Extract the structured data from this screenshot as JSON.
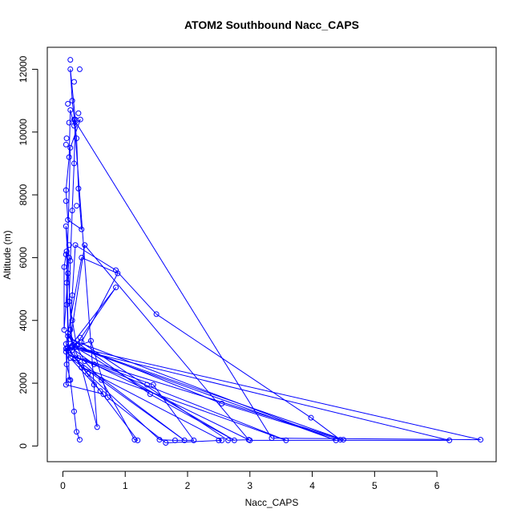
{
  "chart_data": {
    "type": "scatter",
    "title": "ATOM2 Southbound Nacc_CAPS",
    "xlabel": "Nacc_CAPS",
    "ylabel": "Altitude (m)",
    "xlim": [
      -0.25,
      6.95
    ],
    "ylim": [
      -500,
      12700
    ],
    "xticks": [
      0,
      1,
      2,
      3,
      4,
      5,
      6
    ],
    "yticks": [
      0,
      2000,
      4000,
      6000,
      8000,
      10000,
      12000
    ],
    "grid": false,
    "series": [
      {
        "color": "#0000ff",
        "marker": "open-circle",
        "line": true,
        "points": [
          [
            0.27,
            200
          ],
          [
            0.22,
            450
          ],
          [
            0.18,
            1100
          ],
          [
            0.12,
            2100
          ],
          [
            0.06,
            2600
          ],
          [
            0.05,
            3100
          ],
          [
            0.18,
            3300
          ],
          [
            0.35,
            2700
          ],
          [
            0.62,
            2100
          ],
          [
            1.15,
            200
          ],
          [
            1.2,
            180
          ],
          [
            0.6,
            1750
          ],
          [
            0.2,
            2800
          ],
          [
            0.12,
            3700
          ],
          [
            0.15,
            4800
          ],
          [
            0.2,
            6400
          ],
          [
            0.85,
            5600
          ],
          [
            1.5,
            4200
          ],
          [
            3.98,
            900
          ],
          [
            4.45,
            200
          ],
          [
            2.55,
            1350
          ],
          [
            0.22,
            3200
          ],
          [
            0.1,
            4600
          ],
          [
            0.12,
            5900
          ],
          [
            0.15,
            7500
          ],
          [
            0.18,
            9000
          ],
          [
            0.2,
            10400
          ],
          [
            0.12,
            12000
          ],
          [
            0.15,
            11000
          ],
          [
            0.22,
            9800
          ],
          [
            0.25,
            8200
          ],
          [
            0.3,
            6900
          ],
          [
            0.08,
            7200
          ],
          [
            0.05,
            8150
          ],
          [
            0.1,
            9200
          ],
          [
            0.12,
            10700
          ],
          [
            0.18,
            10200
          ],
          [
            0.28,
            10400
          ],
          [
            0.12,
            9500
          ],
          [
            0.06,
            5200
          ],
          [
            0.08,
            3600
          ],
          [
            0.25,
            2800
          ],
          [
            1.45,
            1950
          ],
          [
            2.1,
            180
          ],
          [
            1.8,
            180
          ],
          [
            1.55,
            200
          ],
          [
            0.4,
            2300
          ],
          [
            0.1,
            3050
          ],
          [
            0.45,
            3350
          ],
          [
            0.72,
            1550
          ],
          [
            1.65,
            100
          ],
          [
            2.55,
            180
          ],
          [
            0.3,
            2500
          ],
          [
            0.08,
            3150
          ],
          [
            6.2,
            180
          ],
          [
            3.0,
            180
          ],
          [
            0.5,
            2600
          ],
          [
            0.05,
            3250
          ],
          [
            0.3,
            6000
          ],
          [
            0.88,
            5500
          ],
          [
            0.3,
            3300
          ],
          [
            2.65,
            180
          ],
          [
            2.98,
            200
          ],
          [
            0.35,
            6400
          ],
          [
            0.12,
            3400
          ],
          [
            4.38,
            180
          ],
          [
            0.2,
            3150
          ],
          [
            6.7,
            200
          ],
          [
            3.35,
            250
          ],
          [
            0.18,
            10400
          ],
          [
            0.55,
            600
          ],
          [
            0.3,
            2500
          ],
          [
            3.58,
            180
          ],
          [
            0.1,
            2900
          ],
          [
            4.5,
            200
          ],
          [
            0.15,
            3200
          ],
          [
            2.75,
            180
          ],
          [
            1.4,
            1650
          ],
          [
            0.08,
            3500
          ],
          [
            0.05,
            1950
          ],
          [
            0.65,
            1650
          ],
          [
            0.12,
            2800
          ],
          [
            1.95,
            180
          ],
          [
            0.05,
            3000
          ],
          [
            0.85,
            5050
          ],
          [
            0.15,
            3050
          ],
          [
            0.05,
            7000
          ],
          [
            0.1,
            6000
          ],
          [
            0.02,
            3700
          ],
          [
            0.02,
            5700
          ],
          [
            0.06,
            6200
          ],
          [
            0.1,
            2100
          ]
        ],
        "extra_points": [
          [
            0.12,
            12300
          ],
          [
            0.27,
            12000
          ],
          [
            0.18,
            11600
          ],
          [
            0.08,
            10900
          ],
          [
            0.25,
            10600
          ],
          [
            0.1,
            10300
          ],
          [
            0.06,
            9800
          ],
          [
            0.05,
            9600
          ],
          [
            0.22,
            7650
          ],
          [
            0.05,
            7800
          ],
          [
            0.1,
            6400
          ],
          [
            0.05,
            6100
          ],
          [
            0.08,
            5500
          ],
          [
            0.06,
            4500
          ],
          [
            0.15,
            4000
          ],
          [
            0.28,
            3450
          ],
          [
            0.07,
            3100
          ],
          [
            0.5,
            1950
          ],
          [
            2.5,
            180
          ],
          [
            1.35,
            1950
          ]
        ]
      }
    ]
  }
}
